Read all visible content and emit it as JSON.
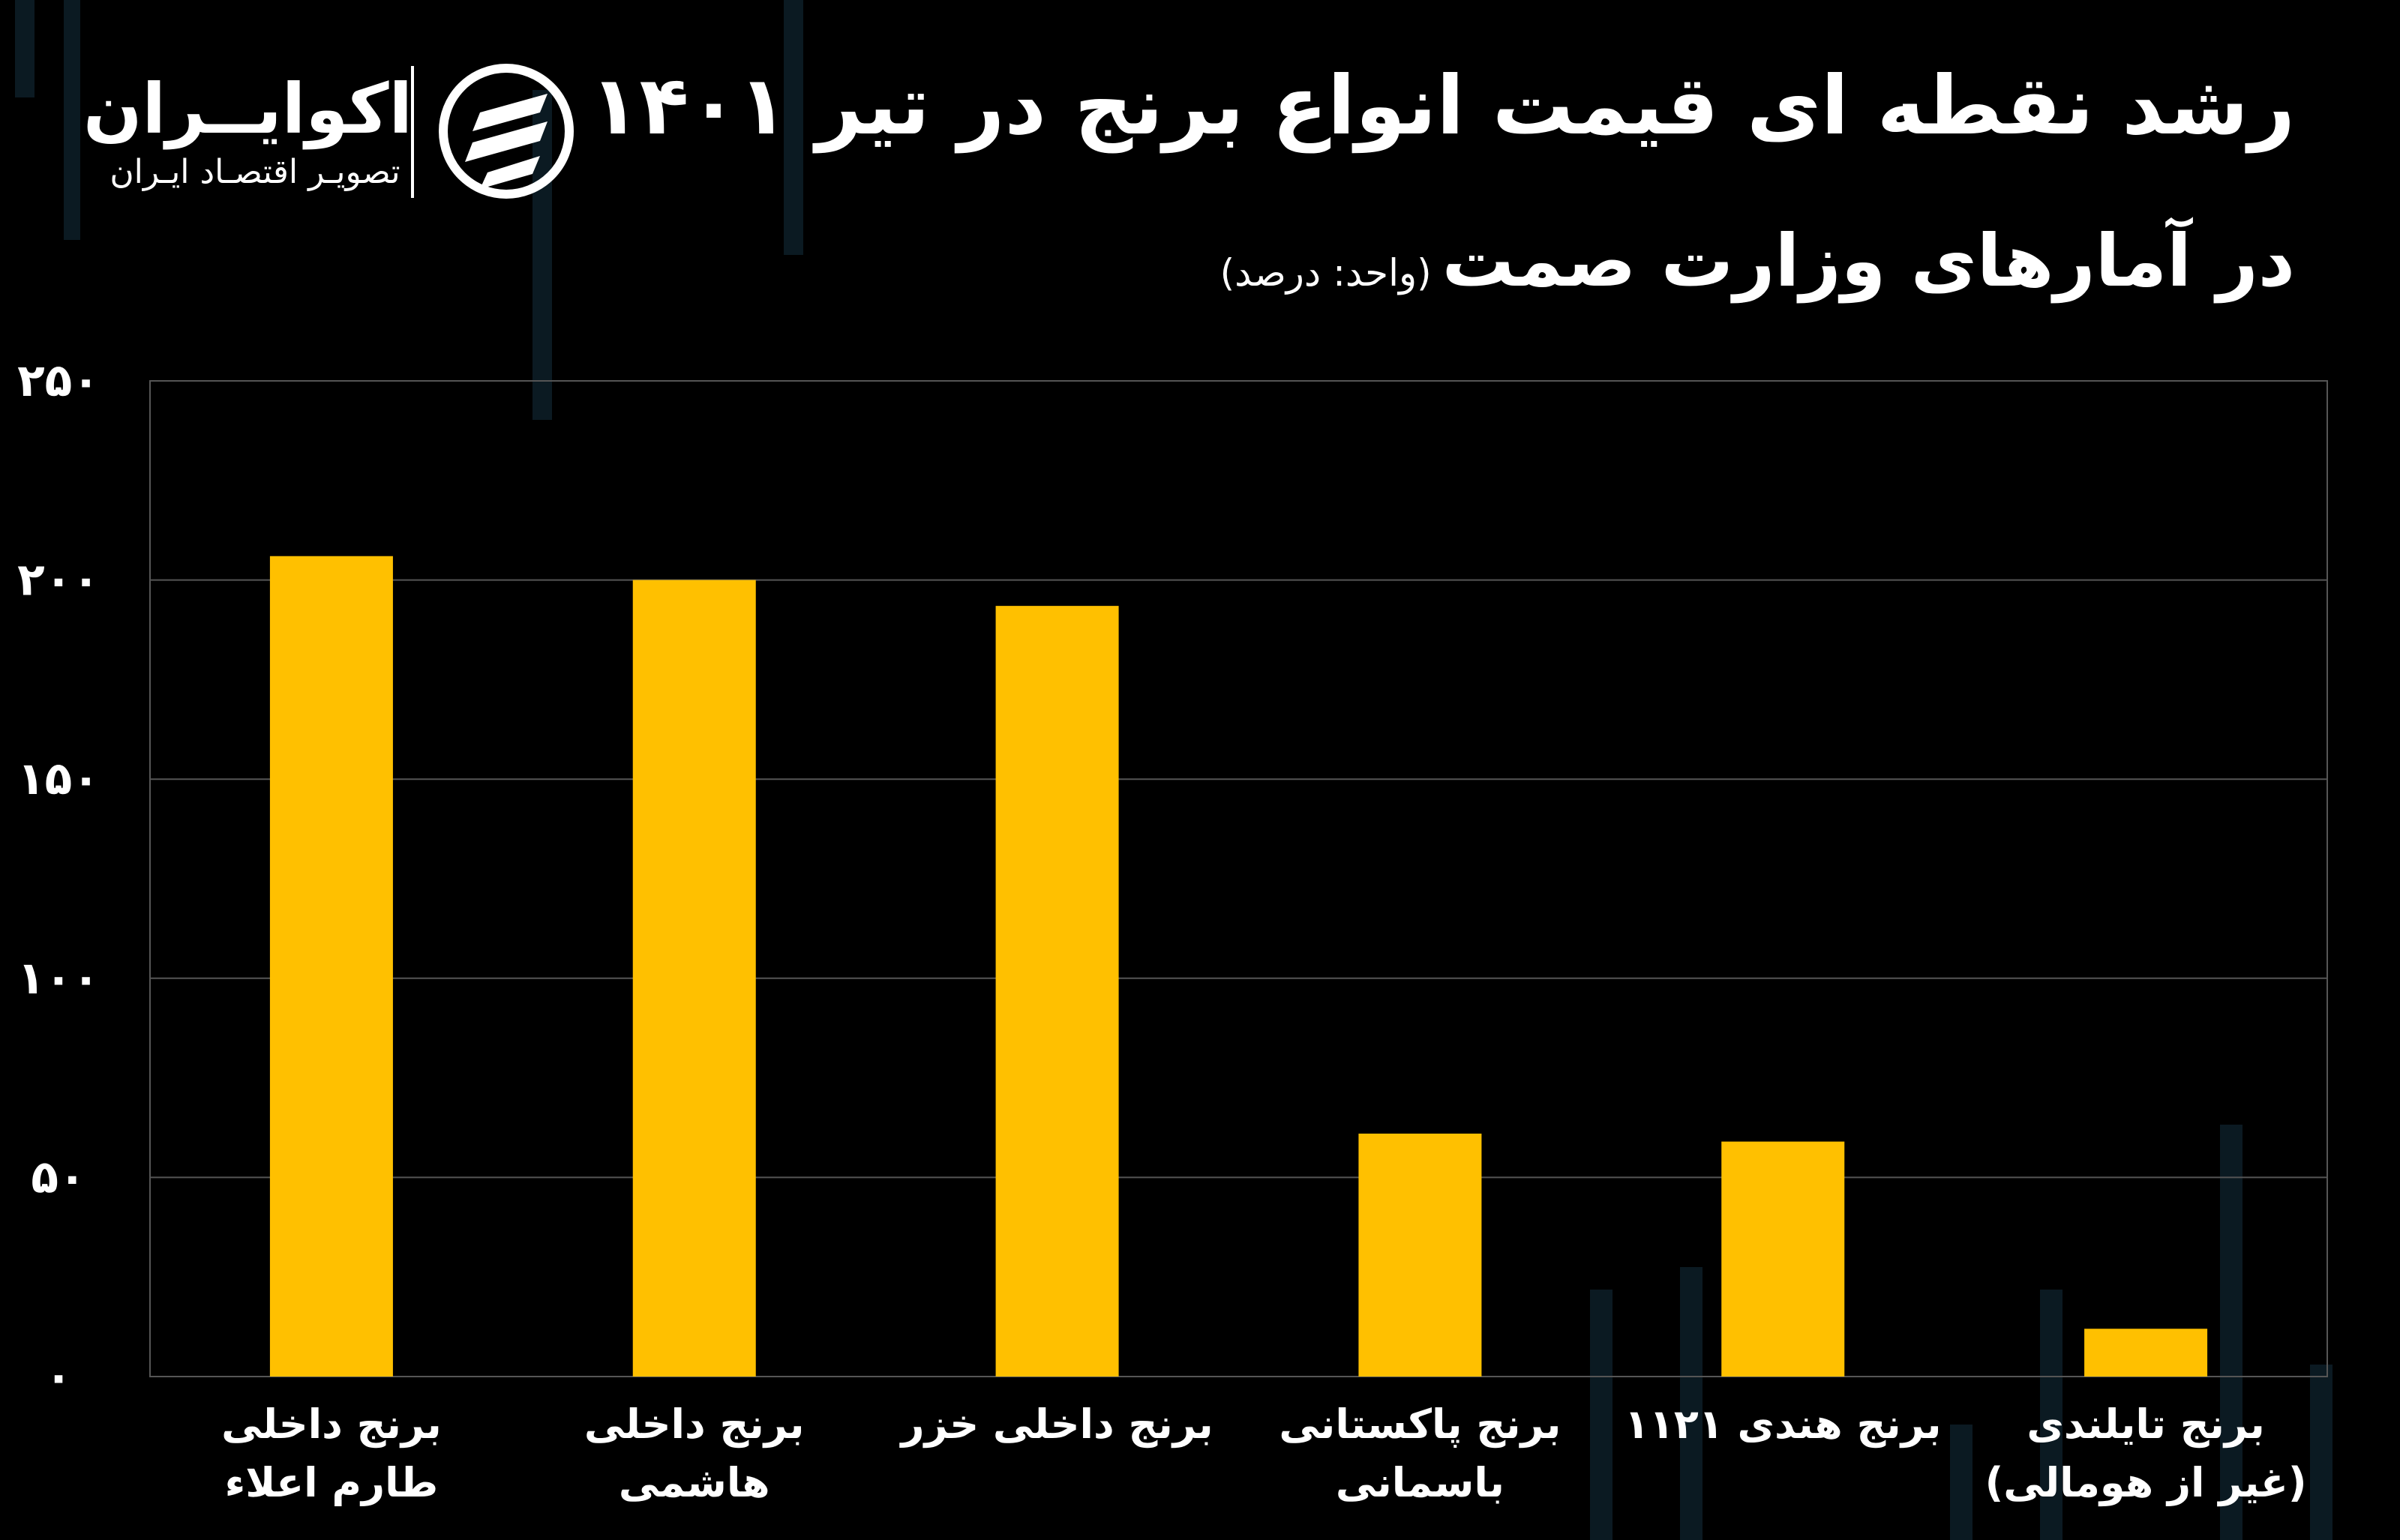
{
  "header": {
    "title": "رشد نقطه ای قیمت انواع برنج در تیر ۱۴۰۱",
    "subtitle": "در آمارهای وزارت صمت",
    "unit": "(واحد: درصد)"
  },
  "brand": {
    "name": "اکوایــران",
    "tagline": "تصویـر اقتصـاد ایـران",
    "icon": "ecoiran-logo-icon"
  },
  "colors": {
    "background": "#000000",
    "bar": "#FFC000",
    "grid": "#555555",
    "text": "#FFFFFF"
  },
  "chart_data": {
    "type": "bar",
    "categories": [
      [
        "برنج داخلی",
        "طارم اعلاء"
      ],
      [
        "برنج داخلی",
        "هاشمی"
      ],
      [
        "برنج داخلی خزر"
      ],
      [
        "برنج پاکستانی",
        "باسمانی"
      ],
      [
        "برنج هندی ۱۱۲۱"
      ],
      [
        "برنج تایلندی",
        "(غیر از هومالی)"
      ]
    ],
    "values": [
      206,
      200,
      193.5,
      61,
      59,
      12
    ],
    "ylim": [
      0,
      250
    ],
    "yticks": [
      0,
      50,
      100,
      150,
      200,
      250
    ],
    "ytick_labels": [
      "۰",
      "۵۰",
      "۱۰۰",
      "۱۵۰",
      "۲۰۰",
      "۲۵۰"
    ],
    "grid": true,
    "xlabel": "",
    "ylabel": ""
  }
}
